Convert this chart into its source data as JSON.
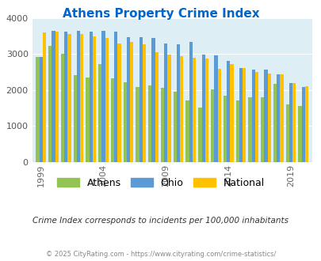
{
  "title": "Athens Property Crime Index",
  "title_color": "#0066cc",
  "subtitle": "Crime Index corresponds to incidents per 100,000 inhabitants",
  "footer": "© 2025 CityRating.com - https://www.cityrating.com/crime-statistics/",
  "years": [
    1999,
    2000,
    2001,
    2002,
    2003,
    2004,
    2005,
    2006,
    2007,
    2008,
    2009,
    2010,
    2011,
    2012,
    2013,
    2014,
    2015,
    2016,
    2017,
    2018,
    2019,
    2020
  ],
  "athens": [
    2920,
    3220,
    3000,
    2420,
    2350,
    2720,
    2320,
    2220,
    2080,
    2120,
    2060,
    1950,
    1700,
    1510,
    2020,
    1840,
    1700,
    1800,
    1790,
    2180,
    1610,
    1560
  ],
  "ohio": [
    2930,
    3650,
    3620,
    3650,
    3620,
    3650,
    3620,
    3480,
    3470,
    3460,
    3290,
    3280,
    3340,
    2980,
    2960,
    2820,
    2620,
    2570,
    2570,
    2430,
    2190,
    2080
  ],
  "national": [
    3610,
    3620,
    3570,
    3570,
    3490,
    3450,
    3300,
    3340,
    3270,
    3060,
    2980,
    2950,
    2900,
    2870,
    2600,
    2720,
    2610,
    2500,
    2450,
    2430,
    2200,
    2100
  ],
  "athens_color": "#92c353",
  "ohio_color": "#5b9bd5",
  "national_color": "#ffc000",
  "ylim": [
    0,
    4000
  ],
  "ytick_step": 1000,
  "xtick_labels": [
    "1999",
    "2004",
    "2009",
    "2014",
    "2019"
  ],
  "xtick_positions": [
    0,
    5,
    10,
    15,
    20
  ],
  "legend_labels": [
    "Athens",
    "Ohio",
    "National"
  ],
  "grid_color": "#ffffff",
  "axes_bg": "#ddeef5",
  "bar_width": 0.27
}
